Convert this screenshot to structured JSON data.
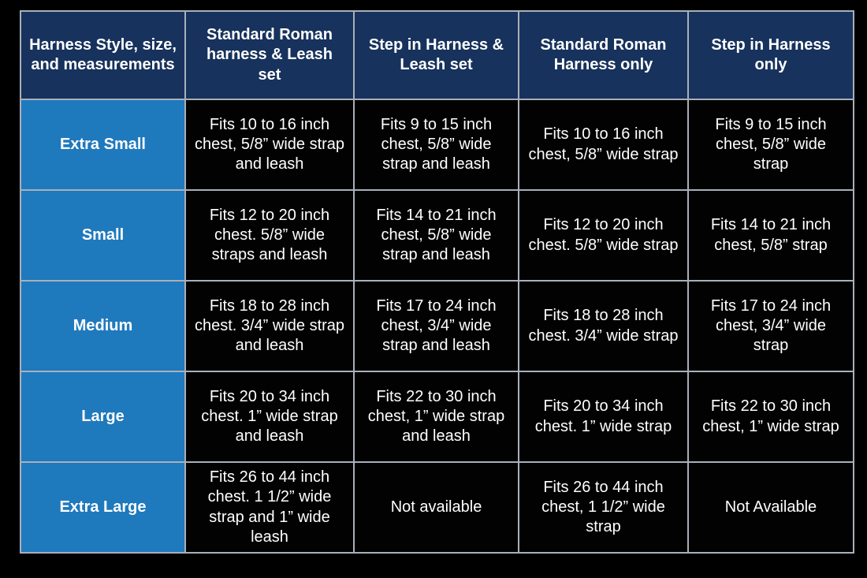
{
  "page": {
    "background": "#000000"
  },
  "colors": {
    "header_bg": "#17325c",
    "size_column_bg": "#1f79bd",
    "data_cell_bg": "#020202",
    "border": "#a9b0ba",
    "text": "#ffffff"
  },
  "chart_data": {
    "type": "table",
    "title": "Harness Style, size, and measurements",
    "columns": [
      "Harness Style, size, and measurements",
      "Standard Roman harness & Leash set",
      "Step in Harness & Leash set",
      "Standard Roman Harness only",
      "Step in Harness only"
    ],
    "rows": [
      {
        "size": "Extra Small",
        "cells": [
          "Fits 10 to 16 inch chest, 5/8” wide strap and leash",
          "Fits 9 to 15 inch chest, 5/8” wide strap and leash",
          "Fits 10 to 16 inch chest, 5/8” wide strap",
          "Fits 9 to 15 inch chest, 5/8” wide strap"
        ]
      },
      {
        "size": "Small",
        "cells": [
          "Fits 12 to 20 inch chest. 5/8” wide straps and leash",
          "Fits 14 to 21 inch chest, 5/8” wide strap and leash",
          "Fits 12 to 20 inch chest. 5/8” wide strap",
          "Fits 14 to 21 inch chest, 5/8” strap"
        ]
      },
      {
        "size": "Medium",
        "cells": [
          "Fits 18 to 28 inch chest. 3/4” wide strap and leash",
          "Fits 17 to 24 inch chest, 3/4” wide strap and leash",
          "Fits 18 to 28 inch chest. 3/4” wide strap",
          "Fits 17 to 24 inch chest, 3/4” wide strap"
        ]
      },
      {
        "size": "Large",
        "cells": [
          "Fits 20 to 34 inch chest. 1” wide strap and leash",
          "Fits 22 to 30 inch chest, 1” wide strap and leash",
          "Fits 20 to 34 inch chest. 1” wide strap",
          "Fits 22 to 30 inch chest, 1” wide strap"
        ]
      },
      {
        "size": "Extra Large",
        "cells": [
          "Fits 26 to 44 inch chest. 1 1/2” wide strap and 1” wide leash",
          "Not available",
          "Fits 26 to 44 inch chest, 1 1/2” wide strap",
          "Not Available"
        ]
      }
    ]
  }
}
